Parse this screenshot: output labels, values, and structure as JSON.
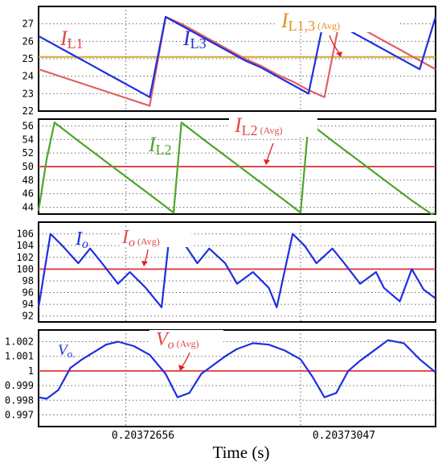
{
  "figure": {
    "xlabel": "Time (s)",
    "x_ticks": [
      "0.20372656",
      "0.20373047"
    ]
  },
  "chart_data": [
    {
      "type": "line",
      "title": "",
      "ylim": [
        22,
        28
      ],
      "yticks": [
        "22",
        "23",
        "24",
        "25",
        "26",
        "27"
      ],
      "grid": true,
      "x": [
        0.0,
        0.04,
        0.08,
        0.12,
        0.16,
        0.2,
        0.24,
        0.28,
        0.32,
        0.36,
        0.4,
        0.44,
        0.48,
        0.52,
        0.56,
        0.6,
        0.64,
        0.68,
        0.72,
        0.76,
        0.8,
        0.84,
        0.88,
        0.92,
        0.96,
        1.0
      ],
      "series": [
        {
          "name": "I_L1",
          "color": "#e06060",
          "values": [
            24.4,
            24.1,
            23.8,
            23.5,
            23.2,
            22.9,
            22.6,
            22.3,
            27.4,
            27.0,
            26.5,
            26.0,
            25.5,
            25.0,
            24.6,
            24.1,
            23.7,
            23.2,
            22.8,
            27.4,
            26.9,
            26.4,
            25.9,
            25.4,
            24.9,
            24.4
          ]
        },
        {
          "name": "I_L3",
          "color": "#1e2fe0",
          "values": [
            26.3,
            25.8,
            25.3,
            24.8,
            24.3,
            23.8,
            23.3,
            22.8,
            27.4,
            26.9,
            26.4,
            25.9,
            25.4,
            24.9,
            24.5,
            24.0,
            23.5,
            23.0,
            27.4,
            26.9,
            26.4,
            25.9,
            25.4,
            24.9,
            24.4,
            27.4
          ]
        },
        {
          "name": "I_L1,3 (Avg)",
          "color": "#d4a83a",
          "values": [
            25.1,
            25.1,
            25.1,
            25.1,
            25.1,
            25.1,
            25.1,
            25.1,
            25.1,
            25.1,
            25.1,
            25.1,
            25.1,
            25.1,
            25.1,
            25.1,
            25.1,
            25.1,
            25.1,
            25.1,
            25.1,
            25.1,
            25.1,
            25.1,
            25.1,
            25.1
          ]
        }
      ]
    },
    {
      "type": "line",
      "title": "",
      "ylim": [
        43,
        57
      ],
      "yticks": [
        "44",
        "46",
        "48",
        "50",
        "52",
        "54",
        "56"
      ],
      "grid": true,
      "x": [
        0.0,
        0.02,
        0.04,
        0.06,
        0.1,
        0.15,
        0.2,
        0.25,
        0.3,
        0.34,
        0.36,
        0.38,
        0.42,
        0.47,
        0.52,
        0.57,
        0.62,
        0.66,
        0.68,
        0.7,
        0.74,
        0.79,
        0.84,
        0.89,
        0.94,
        0.99,
        1.0
      ],
      "series": [
        {
          "name": "I_L2",
          "color": "#4ca62a",
          "values": [
            43.5,
            51.0,
            56.5,
            55.6,
            53.8,
            51.6,
            49.4,
            47.2,
            45.0,
            43.2,
            56.5,
            55.6,
            53.8,
            51.6,
            49.4,
            47.2,
            45.0,
            43.2,
            56.5,
            55.6,
            53.8,
            51.6,
            49.4,
            47.2,
            45.0,
            43.0,
            43.2
          ]
        },
        {
          "name": "I_L2 (Avg)",
          "color": "#e04848",
          "values": [
            50,
            50,
            50,
            50,
            50,
            50,
            50,
            50,
            50,
            50,
            50,
            50,
            50,
            50,
            50,
            50,
            50,
            50,
            50,
            50,
            50,
            50,
            50,
            50,
            50,
            50,
            50
          ]
        }
      ]
    },
    {
      "type": "line",
      "title": "",
      "ylim": [
        91,
        108
      ],
      "yticks": [
        "92",
        "94",
        "96",
        "98",
        "100",
        "102",
        "104",
        "106"
      ],
      "grid": true,
      "x": [
        0.0,
        0.03,
        0.06,
        0.1,
        0.13,
        0.16,
        0.2,
        0.23,
        0.27,
        0.31,
        0.33,
        0.37,
        0.4,
        0.43,
        0.47,
        0.5,
        0.54,
        0.58,
        0.6,
        0.64,
        0.67,
        0.7,
        0.74,
        0.77,
        0.81,
        0.85,
        0.87,
        0.91,
        0.94,
        0.97,
        1.0
      ],
      "series": [
        {
          "name": "I_o",
          "color": "#1e2fe0",
          "values": [
            93.5,
            106.0,
            104.0,
            101.0,
            103.5,
            101.0,
            97.5,
            99.5,
            96.8,
            93.5,
            106.0,
            104.0,
            101.0,
            103.5,
            101.0,
            97.5,
            99.5,
            96.8,
            93.5,
            106.0,
            104.0,
            101.0,
            103.5,
            101.0,
            97.5,
            99.5,
            96.8,
            94.5,
            100.0,
            96.5,
            95.0
          ]
        },
        {
          "name": "I_o (Avg)",
          "color": "#e04848",
          "values": [
            100,
            100,
            100,
            100,
            100,
            100,
            100,
            100,
            100,
            100,
            100,
            100,
            100,
            100,
            100,
            100,
            100,
            100,
            100,
            100,
            100,
            100,
            100,
            100,
            100,
            100,
            100,
            100,
            100,
            100,
            100
          ]
        }
      ]
    },
    {
      "type": "line",
      "title": "",
      "ylim": [
        0.9962,
        1.0028
      ],
      "yticks": [
        "0.997",
        "0.998",
        "0.999",
        "1",
        "1.001",
        "1.002"
      ],
      "grid": true,
      "x": [
        0.0,
        0.02,
        0.05,
        0.08,
        0.11,
        0.14,
        0.17,
        0.2,
        0.24,
        0.28,
        0.32,
        0.35,
        0.38,
        0.41,
        0.44,
        0.47,
        0.5,
        0.54,
        0.58,
        0.62,
        0.66,
        0.69,
        0.72,
        0.75,
        0.78,
        0.81,
        0.84,
        0.88,
        0.92,
        0.96,
        1.0
      ],
      "series": [
        {
          "name": "V_o",
          "color": "#1e2fe0",
          "values": [
            0.9982,
            0.9981,
            0.9987,
            1.0002,
            1.0008,
            1.0013,
            1.0018,
            1.002,
            1.0017,
            1.0011,
            0.9998,
            0.9982,
            0.9985,
            0.9998,
            1.0004,
            1.001,
            1.0015,
            1.0019,
            1.0018,
            1.0014,
            1.0008,
            0.9996,
            0.9982,
            0.9985,
            1.0,
            1.0007,
            1.0013,
            1.0021,
            1.0019,
            1.0008,
            0.9999
          ]
        },
        {
          "name": "V_o (Avg)",
          "color": "#e04848",
          "values": [
            1,
            1,
            1,
            1,
            1,
            1,
            1,
            1,
            1,
            1,
            1,
            1,
            1,
            1,
            1,
            1,
            1,
            1,
            1,
            1,
            1,
            1,
            1,
            1,
            1,
            1,
            1,
            1,
            1,
            1,
            1
          ]
        }
      ]
    }
  ]
}
